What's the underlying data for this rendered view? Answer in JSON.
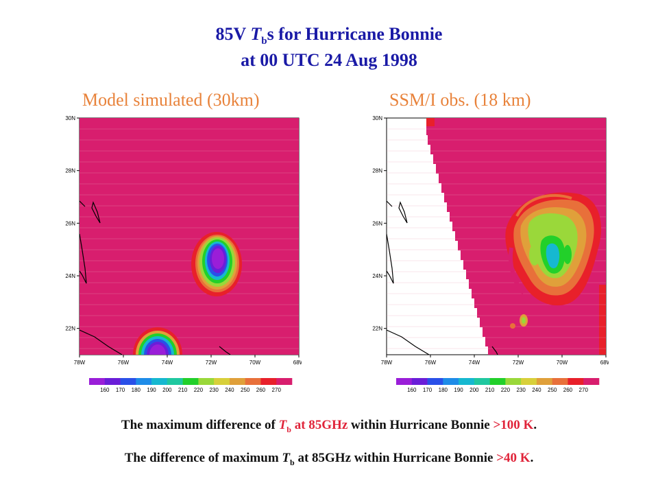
{
  "title": {
    "line1_prefix": "85V ",
    "line1_T": "T",
    "line1_sub": "b",
    "line1_suffix": "s for Hurricane Bonnie",
    "line2": "at 00 UTC 24 Aug 1998"
  },
  "colors": {
    "title": "#1a1aa6",
    "panel_label": "#e8823a",
    "highlight": "#e0243a",
    "background_field": "#d81e6e"
  },
  "chart_data": [
    {
      "type": "heatmap",
      "title": "Model simulated  (30km)",
      "x_ticks": [
        "78W",
        "76W",
        "74W",
        "72W",
        "70W",
        "68W"
      ],
      "y_ticks": [
        "30N",
        "28N",
        "26N",
        "24N",
        "22N"
      ],
      "xlim": [
        -78,
        -68
      ],
      "ylim": [
        21,
        30
      ],
      "colorbar": {
        "labels": [
          "160",
          "170",
          "180",
          "190",
          "200",
          "210",
          "220",
          "230",
          "240",
          "250",
          "260",
          "270"
        ],
        "colors": [
          "#9a1ed8",
          "#6a1ed8",
          "#2a50e8",
          "#1e8ce8",
          "#16b8d0",
          "#20c8a0",
          "#22d02a",
          "#9ad83a",
          "#d8d03a",
          "#e0a03a",
          "#e8703a",
          "#e8202a",
          "#d81e6e"
        ]
      },
      "features": [
        {
          "name": "cold core 1",
          "center_lon": -71.8,
          "center_lat": 24.9,
          "min_tb": 160
        },
        {
          "name": "cold core 2",
          "center_lon": -74.9,
          "center_lat": 21.2,
          "min_tb": 160
        }
      ]
    },
    {
      "type": "heatmap",
      "title": "SSM/I obs. (18 km)",
      "x_ticks": [
        "78W",
        "76W",
        "74W",
        "72W",
        "70W",
        "68W"
      ],
      "y_ticks": [
        "30N",
        "28N",
        "26N",
        "24N",
        "22N"
      ],
      "xlim": [
        -78,
        -68
      ],
      "ylim": [
        21,
        30
      ],
      "colorbar": {
        "labels": [
          "160",
          "170",
          "180",
          "190",
          "200",
          "210",
          "220",
          "230",
          "240",
          "250",
          "260",
          "270"
        ],
        "colors": [
          "#9a1ed8",
          "#6a1ed8",
          "#2a50e8",
          "#1e8ce8",
          "#16b8d0",
          "#20c8a0",
          "#22d02a",
          "#9ad83a",
          "#d8d03a",
          "#e0a03a",
          "#e8703a",
          "#e8202a",
          "#d81e6e"
        ]
      },
      "features": [
        {
          "name": "rainband spiral",
          "center_lon": -70.9,
          "center_lat": 24.8,
          "min_tb": 200
        }
      ]
    }
  ],
  "footnote": {
    "line1": {
      "a": "The maximum difference of ",
      "T": "T",
      "sub": "b",
      "b": " at 85GHz",
      "c": " within Hurricane Bonnie ",
      "d": ">100 K",
      "e": "."
    },
    "line2": {
      "a": "The difference of maximum ",
      "T": "T",
      "sub": "b",
      "b": " at 85GHz within Hurricane Bonnie ",
      "d": ">40 K",
      "e": "."
    }
  }
}
